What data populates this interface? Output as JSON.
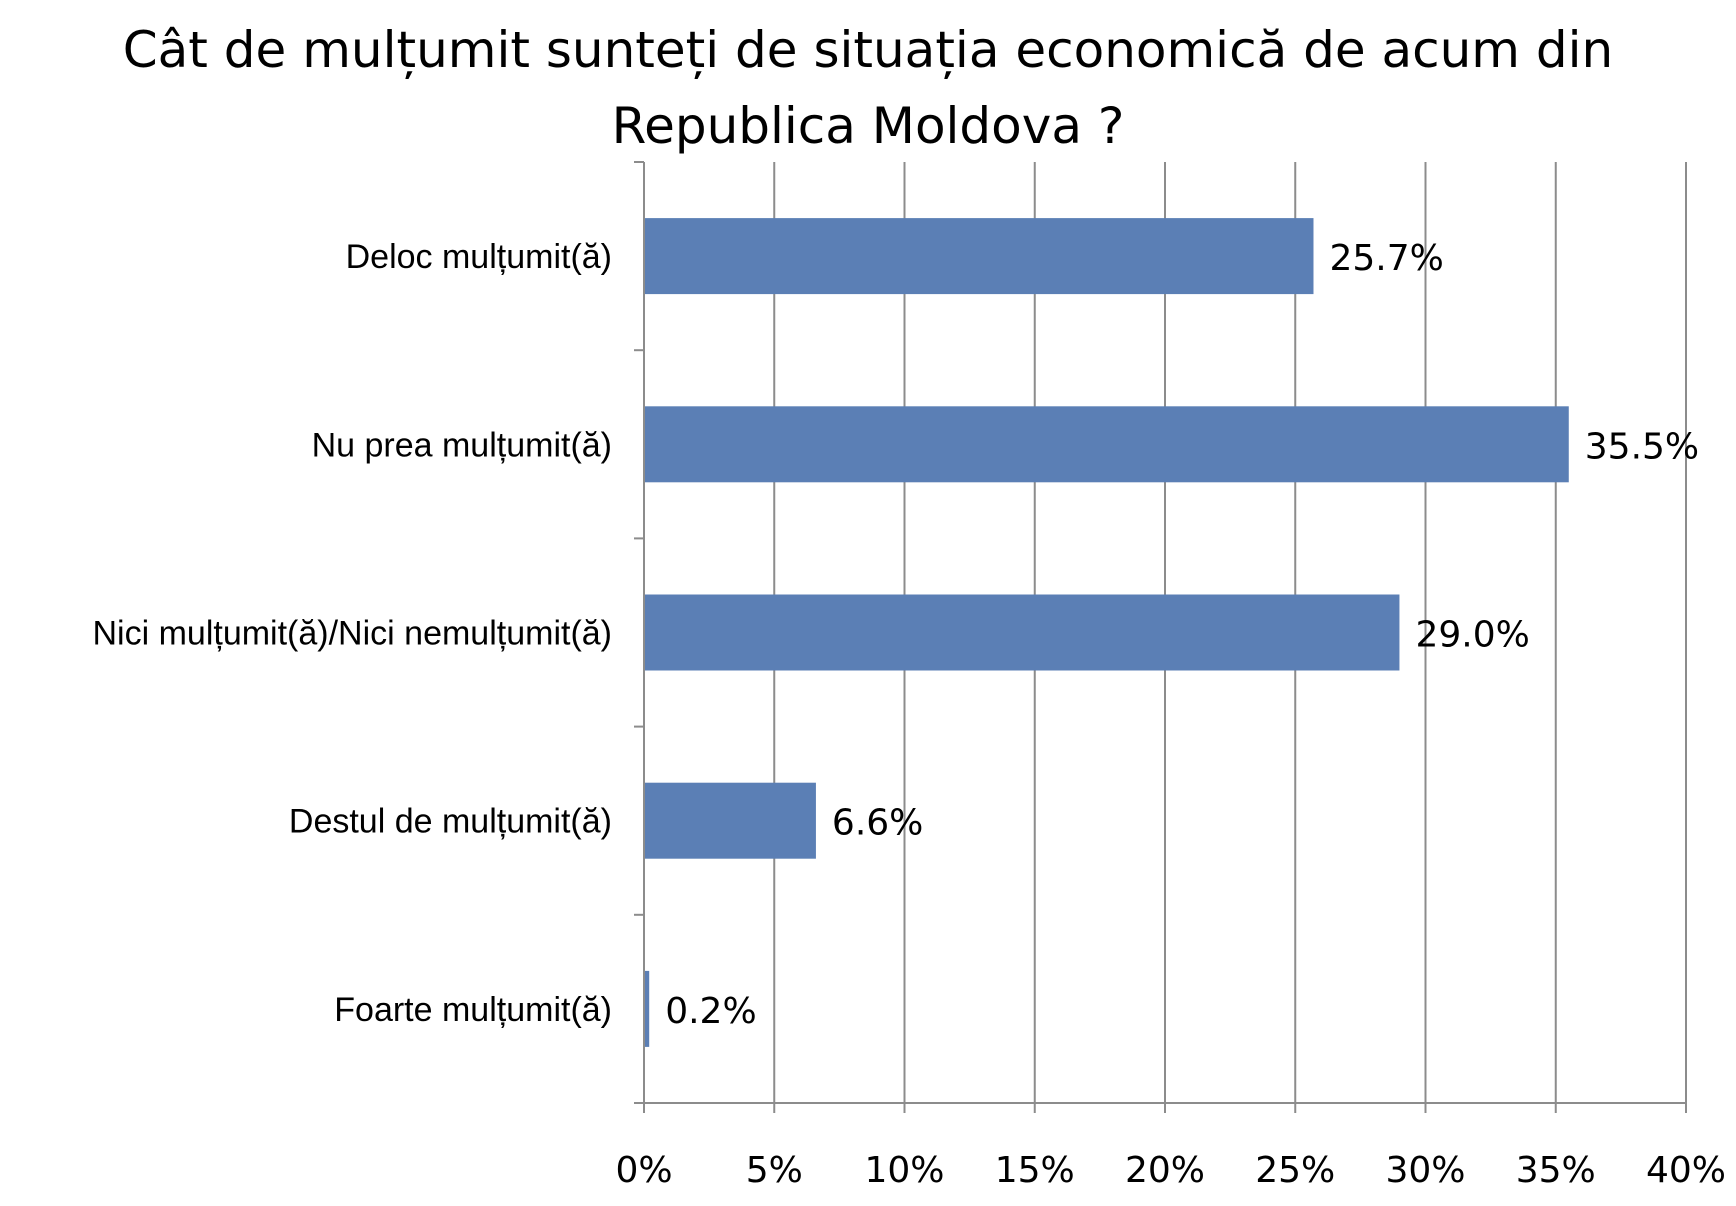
{
  "chart_data": {
    "type": "bar",
    "orientation": "horizontal",
    "title": "Cât de mulțumit sunteți de situația economică de acum din Republica Moldova ?",
    "categories": [
      "Deloc mulțumit(ă)",
      "Nu prea mulțumit(ă)",
      "Nici mulțumit(ă)/Nici nemulțumit(ă)",
      "Destul de mulțumit(ă)",
      "Foarte mulțumit(ă)"
    ],
    "values": [
      25.7,
      35.5,
      29.0,
      6.6,
      0.2
    ],
    "value_labels": [
      "25.7%",
      "35.5%",
      "29.0%",
      "6.6%",
      "0.2%"
    ],
    "xlim": [
      0,
      40
    ],
    "x_ticks": [
      "0%",
      "5%",
      "10%",
      "15%",
      "20%",
      "25%",
      "30%",
      "35%",
      "40%"
    ],
    "grid": "vertical",
    "bar_color": "#5b7fb5",
    "grid_color": "#8c8c8c",
    "xlabel": "",
    "ylabel": ""
  }
}
